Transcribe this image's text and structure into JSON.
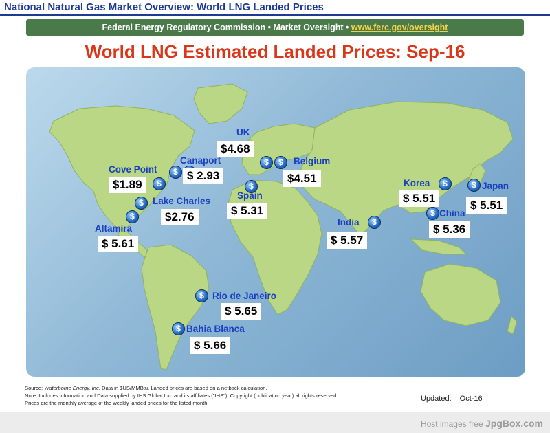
{
  "header": {
    "title": "National Natural Gas Market Overview: World LNG Landed Prices",
    "org_line": "Federal Energy Regulatory Commission • Market Oversight •",
    "link": "www.ferc.gov/oversight"
  },
  "map_title": "World LNG Estimated Landed Prices: Sep-16",
  "locations": [
    {
      "name": "UK",
      "price": "$4.68"
    },
    {
      "name": "Belgium",
      "price": "$4.51"
    },
    {
      "name": "Cove Point",
      "price": "$1.89"
    },
    {
      "name": "Canaport",
      "price": "$  2.93"
    },
    {
      "name": "Lake Charles",
      "price": "$2.76"
    },
    {
      "name": "Altamira",
      "price": "$  5.61"
    },
    {
      "name": "Spain",
      "price": "$  5.31"
    },
    {
      "name": "India",
      "price": "$  5.57"
    },
    {
      "name": "Korea",
      "price": "$  5.51"
    },
    {
      "name": "Japan",
      "price": "$  5.51"
    },
    {
      "name": "China",
      "price": "$  5.36"
    },
    {
      "name": "Rio de Janeiro",
      "price": "$  5.65"
    },
    {
      "name": "Bahia Blanca",
      "price": "$  5.66"
    }
  ],
  "pin_symbol": "$",
  "footer": {
    "source_prefix": "Source: ",
    "source_name": "Waterborne Energy, Inc.",
    "source_rest": "  Data in $US/MMBtu. Landed prices are based on a netback calculation.",
    "note": "Note: Includes information and Data supplied by IHS Global Inc. and its affiliates (\"IHS\"); Copyright (publication year) all rights reserved.",
    "prices_note": "Prices are the monthly average of the weekly landed prices for the listed month.",
    "updated_label": "Updated:",
    "updated_value": "Oct-16"
  },
  "host": {
    "text": "Host images free ",
    "brand": "JpgBox.com"
  }
}
